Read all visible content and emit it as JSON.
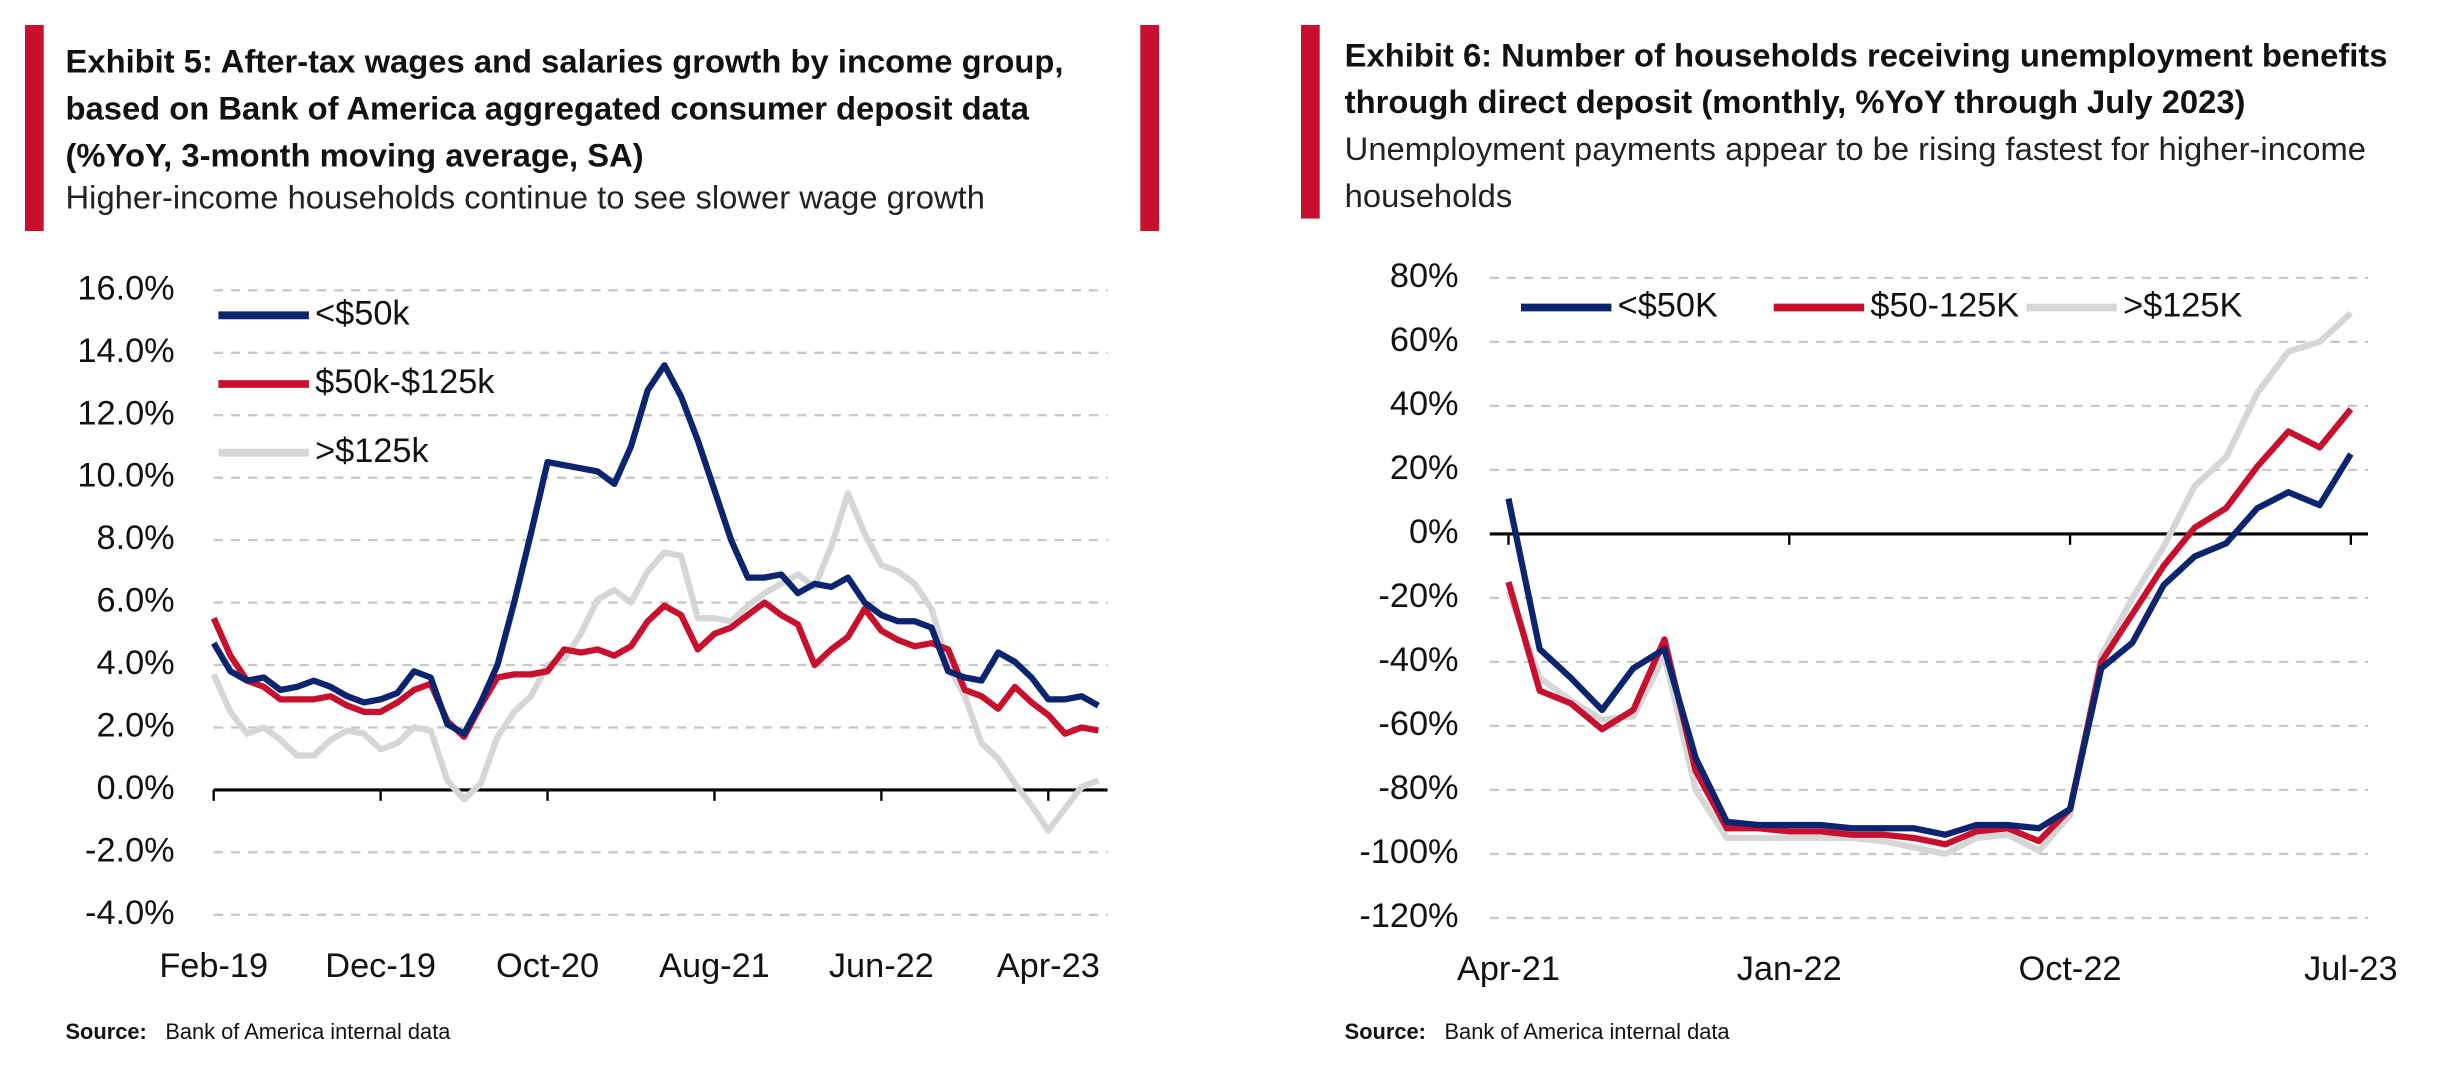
{
  "chart_data": [
    {
      "type": "line",
      "title": [
        "Exhibit 5: After-tax wages and salaries growth by income group,",
        "based on Bank of America aggregated consumer deposit data",
        "(%YoY, 3-month moving average, SA)"
      ],
      "subtitle": [
        "Higher-income households continue to see slower wage growth"
      ],
      "source_label": "Source:",
      "source": "Bank of America internal data",
      "categories": [
        "Feb-19",
        null,
        null,
        null,
        null,
        null,
        null,
        null,
        null,
        null,
        "Dec-19",
        null,
        null,
        null,
        null,
        null,
        null,
        null,
        null,
        null,
        "Oct-20",
        null,
        null,
        null,
        null,
        null,
        null,
        null,
        null,
        null,
        "Aug-21",
        null,
        null,
        null,
        null,
        null,
        null,
        null,
        null,
        null,
        "Jun-22",
        null,
        null,
        null,
        null,
        null,
        null,
        null,
        null,
        null,
        "Apr-23",
        null,
        null,
        null
      ],
      "series": [
        {
          "name": "<$50k",
          "color": "#0b2470",
          "values": [
            4.7,
            3.8,
            3.5,
            3.6,
            3.2,
            3.3,
            3.5,
            3.3,
            3.0,
            2.8,
            2.9,
            3.1,
            3.8,
            3.6,
            2.1,
            1.8,
            2.8,
            4.0,
            6.0,
            8.2,
            10.5,
            10.4,
            10.3,
            10.2,
            9.8,
            11.0,
            12.8,
            13.6,
            12.6,
            11.2,
            9.6,
            8.0,
            6.8,
            6.8,
            6.9,
            6.3,
            6.6,
            6.5,
            6.8,
            6.0,
            5.6,
            5.4,
            5.4,
            5.2,
            3.8,
            3.6,
            3.5,
            4.4,
            4.1,
            3.6,
            2.9,
            2.9,
            3.0,
            2.7
          ]
        },
        {
          "name": "$50k-$125k",
          "color": "#c8102e",
          "values": [
            5.5,
            4.3,
            3.5,
            3.3,
            2.9,
            2.9,
            2.9,
            3.0,
            2.7,
            2.5,
            2.5,
            2.8,
            3.2,
            3.4,
            2.2,
            1.7,
            2.7,
            3.6,
            3.7,
            3.7,
            3.8,
            4.5,
            4.4,
            4.5,
            4.3,
            4.6,
            5.4,
            5.9,
            5.6,
            4.5,
            5.0,
            5.2,
            5.6,
            6.0,
            5.6,
            5.3,
            4.0,
            4.5,
            4.9,
            5.8,
            5.1,
            4.8,
            4.6,
            4.7,
            4.5,
            3.2,
            3.0,
            2.6,
            3.3,
            2.8,
            2.4,
            1.8,
            2.0,
            1.9
          ]
        },
        {
          "name": ">$125k",
          "color": "#d6d6d6",
          "values": [
            3.7,
            2.5,
            1.8,
            2.0,
            1.6,
            1.1,
            1.1,
            1.6,
            1.9,
            1.8,
            1.3,
            1.5,
            2.0,
            1.9,
            0.3,
            -0.3,
            0.2,
            1.7,
            2.5,
            3.0,
            4.0,
            4.2,
            5.0,
            6.1,
            6.4,
            6.0,
            7.0,
            7.6,
            7.5,
            5.5,
            5.5,
            5.4,
            5.9,
            6.3,
            6.6,
            6.9,
            6.5,
            7.8,
            9.5,
            8.2,
            7.2,
            7.0,
            6.6,
            5.8,
            4.0,
            3.0,
            1.5,
            1.0,
            0.2,
            -0.5,
            -1.3,
            -0.6,
            0.1,
            0.3
          ]
        }
      ],
      "ylim": [
        -4,
        16
      ],
      "yticks": [
        {
          "value": -4,
          "label": "-4.0%"
        },
        {
          "value": -2,
          "label": "-2.0%"
        },
        {
          "value": 0,
          "label": "0.0%"
        },
        {
          "value": 2,
          "label": "2.0%"
        },
        {
          "value": 4,
          "label": "4.0%"
        },
        {
          "value": 6,
          "label": "6.0%"
        },
        {
          "value": 8,
          "label": "8.0%"
        },
        {
          "value": 10,
          "label": "10.0%"
        },
        {
          "value": 12,
          "label": "12.0%"
        },
        {
          "value": 14,
          "label": "14.0%"
        },
        {
          "value": 16,
          "label": "16.0%"
        }
      ],
      "grid": true,
      "legend": "upper left"
    },
    {
      "type": "line",
      "title": [
        "Exhibit 6: Number of households receiving unemployment benefits",
        "through direct deposit (monthly, %YoY through July 2023)"
      ],
      "subtitle": [
        "Unemployment payments appear to be rising fastest for higher-income",
        "households"
      ],
      "source_label": "Source:",
      "source": "Bank of America internal data",
      "categories": [
        "Apr-21",
        null,
        null,
        null,
        null,
        null,
        null,
        null,
        null,
        "Jan-22",
        null,
        null,
        null,
        null,
        null,
        null,
        null,
        null,
        "Oct-22",
        null,
        null,
        null,
        null,
        null,
        null,
        null,
        null,
        "Jul-23"
      ],
      "series": [
        {
          "name": "<$50K",
          "color": "#0b2470",
          "values": [
            11,
            -36,
            -45,
            -55,
            -42,
            -36,
            -70,
            -90,
            -91,
            -91,
            -91,
            -92,
            -92,
            -92,
            -94,
            -91,
            -91,
            -92,
            -86,
            -42,
            -34,
            -16,
            -7,
            -3,
            8,
            13,
            9,
            25
          ]
        },
        {
          "name": "$50-125K",
          "color": "#c8102e",
          "values": [
            -15,
            -49,
            -53,
            -61,
            -55,
            -33,
            -74,
            -92,
            -92,
            -93,
            -93,
            -94,
            -94,
            -95,
            -97,
            -93,
            -92,
            -96,
            -86,
            -40,
            -25,
            -10,
            2,
            8,
            21,
            32,
            27,
            39
          ]
        },
        {
          "name": ">$125K",
          "color": "#d6d6d6",
          "values": [
            -18,
            -45,
            -52,
            -58,
            -57,
            -38,
            -80,
            -95,
            -95,
            -95,
            -95,
            -95,
            -96,
            -98,
            -100,
            -95,
            -94,
            -99,
            -88,
            -38,
            -20,
            -4,
            15,
            24,
            44,
            57,
            60,
            69
          ]
        }
      ],
      "ylim": [
        -120,
        80
      ],
      "yticks": [
        {
          "value": -120,
          "label": "-120%"
        },
        {
          "value": -100,
          "label": "-100%"
        },
        {
          "value": -80,
          "label": "-80%"
        },
        {
          "value": -60,
          "label": "-60%"
        },
        {
          "value": -40,
          "label": "-40%"
        },
        {
          "value": -20,
          "label": "-20%"
        },
        {
          "value": 0,
          "label": "0%"
        },
        {
          "value": 20,
          "label": "20%"
        },
        {
          "value": 40,
          "label": "40%"
        },
        {
          "value": 60,
          "label": "60%"
        },
        {
          "value": 80,
          "label": "80%"
        }
      ],
      "grid": true,
      "legend": "upper left"
    }
  ]
}
